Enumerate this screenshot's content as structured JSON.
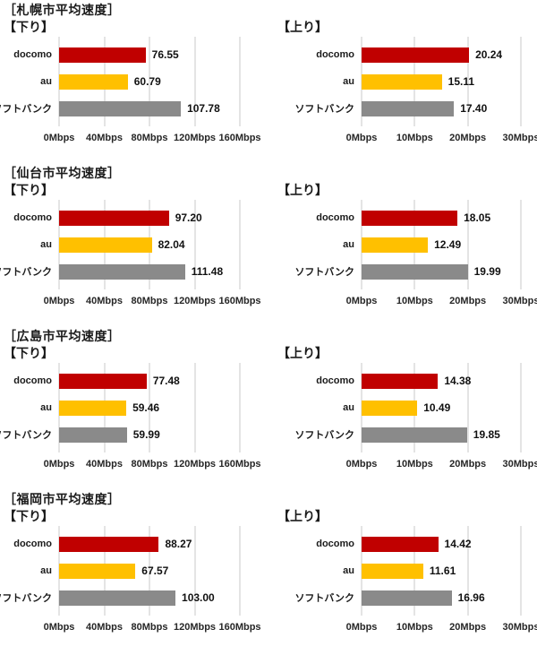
{
  "series_keys": [
    "docomo",
    "au",
    "softbank"
  ],
  "bar_colors": [
    "#c00000",
    "#ffc000",
    "#8a8a8a"
  ],
  "colors": {
    "docomo_red": "#c00000",
    "au_yellow": "#ffc000",
    "softbank_gray": "#8a8a8a",
    "gridline": "#c9c9c9",
    "text": "#1a1a1a"
  },
  "chart_data": [
    {
      "type": "bar",
      "orientation": "horizontal",
      "group": "［札幌市平均速度］",
      "title": "【下り】",
      "categories": [
        "docomo",
        "au",
        "ソフトバンク"
      ],
      "values": [
        76.55,
        60.79,
        107.78
      ],
      "value_labels": [
        "76.55",
        "60.79",
        "107.78"
      ],
      "xlim": [
        0,
        160
      ],
      "tick_labels": [
        "0Mbps",
        "40Mbps",
        "80Mbps",
        "120Mbps",
        "160Mbps"
      ],
      "grid": true,
      "legend": false
    },
    {
      "type": "bar",
      "orientation": "horizontal",
      "title": "【上り】",
      "categories": [
        "docomo",
        "au",
        "ソフトバンク"
      ],
      "values": [
        20.24,
        15.11,
        17.4
      ],
      "value_labels": [
        "20.24",
        "15.11",
        "17.40"
      ],
      "xlim": [
        0,
        30
      ],
      "tick_labels": [
        "0Mbps",
        "10Mbps",
        "20Mbps",
        "30Mbps"
      ],
      "grid": true,
      "legend": false
    },
    {
      "type": "bar",
      "orientation": "horizontal",
      "group": "［仙台市平均速度］",
      "title": "【下り】",
      "categories": [
        "docomo",
        "au",
        "ソフトバンク"
      ],
      "values": [
        97.2,
        82.04,
        111.48
      ],
      "value_labels": [
        "97.20",
        "82.04",
        "111.48"
      ],
      "xlim": [
        0,
        160
      ],
      "tick_labels": [
        "0Mbps",
        "40Mbps",
        "80Mbps",
        "120Mbps",
        "160Mbps"
      ],
      "grid": true,
      "legend": false
    },
    {
      "type": "bar",
      "orientation": "horizontal",
      "title": "【上り】",
      "categories": [
        "docomo",
        "au",
        "ソフトバンク"
      ],
      "values": [
        18.05,
        12.49,
        19.99
      ],
      "value_labels": [
        "18.05",
        "12.49",
        "19.99"
      ],
      "xlim": [
        0,
        30
      ],
      "tick_labels": [
        "0Mbps",
        "10Mbps",
        "20Mbps",
        "30Mbps"
      ],
      "grid": true,
      "legend": false
    },
    {
      "type": "bar",
      "orientation": "horizontal",
      "group": "［広島市平均速度］",
      "title": "【下り】",
      "categories": [
        "docomo",
        "au",
        "ソフトバンク"
      ],
      "values": [
        77.48,
        59.46,
        59.99
      ],
      "value_labels": [
        "77.48",
        "59.46",
        "59.99"
      ],
      "xlim": [
        0,
        160
      ],
      "tick_labels": [
        "0Mbps",
        "40Mbps",
        "80Mbps",
        "120Mbps",
        "160Mbps"
      ],
      "grid": true,
      "legend": false
    },
    {
      "type": "bar",
      "orientation": "horizontal",
      "title": "【上り】",
      "categories": [
        "docomo",
        "au",
        "ソフトバンク"
      ],
      "values": [
        14.38,
        10.49,
        19.85
      ],
      "value_labels": [
        "14.38",
        "10.49",
        "19.85"
      ],
      "xlim": [
        0,
        30
      ],
      "tick_labels": [
        "0Mbps",
        "10Mbps",
        "20Mbps",
        "30Mbps"
      ],
      "grid": true,
      "legend": false
    },
    {
      "type": "bar",
      "orientation": "horizontal",
      "group": "［福岡市平均速度］",
      "title": "【下り】",
      "categories": [
        "docomo",
        "au",
        "ソフトバンク"
      ],
      "values": [
        88.27,
        67.57,
        103.0
      ],
      "value_labels": [
        "88.27",
        "67.57",
        "103.00"
      ],
      "xlim": [
        0,
        160
      ],
      "tick_labels": [
        "0Mbps",
        "40Mbps",
        "80Mbps",
        "120Mbps",
        "160Mbps"
      ],
      "grid": true,
      "legend": false
    },
    {
      "type": "bar",
      "orientation": "horizontal",
      "title": "【上り】",
      "categories": [
        "docomo",
        "au",
        "ソフトバンク"
      ],
      "values": [
        14.42,
        11.61,
        16.96
      ],
      "value_labels": [
        "14.42",
        "11.61",
        "16.96"
      ],
      "xlim": [
        0,
        30
      ],
      "tick_labels": [
        "0Mbps",
        "10Mbps",
        "20Mbps",
        "30Mbps"
      ],
      "grid": true,
      "legend": false
    }
  ]
}
